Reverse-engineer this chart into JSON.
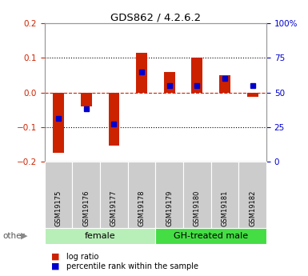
{
  "title": "GDS862 / 4.2.6.2",
  "samples": [
    "GSM19175",
    "GSM19176",
    "GSM19177",
    "GSM19178",
    "GSM19179",
    "GSM19180",
    "GSM19181",
    "GSM19182"
  ],
  "log_ratio": [
    -0.175,
    -0.04,
    -0.155,
    0.115,
    0.06,
    0.1,
    0.05,
    -0.012
  ],
  "percentile_rank": [
    31,
    38,
    27,
    65,
    55,
    55,
    60,
    55
  ],
  "ylim_left": [
    -0.2,
    0.2
  ],
  "ylim_right": [
    0,
    100
  ],
  "bar_color": "#CC2200",
  "marker_color": "#0000CC",
  "bg_color": "#FFFFFF",
  "plot_bg_color": "#FFFFFF",
  "tick_color_left": "#CC2200",
  "tick_color_right": "#0000CC",
  "group_female_color": "#B8EEB8",
  "group_male_color": "#44DD44",
  "sample_box_color": "#CCCCCC",
  "legend_log_ratio": "log ratio",
  "legend_percentile": "percentile rank within the sample",
  "other_label": "other",
  "groups": [
    {
      "label": "female",
      "start": 0,
      "end": 3
    },
    {
      "label": "GH-treated male",
      "start": 4,
      "end": 7
    }
  ]
}
